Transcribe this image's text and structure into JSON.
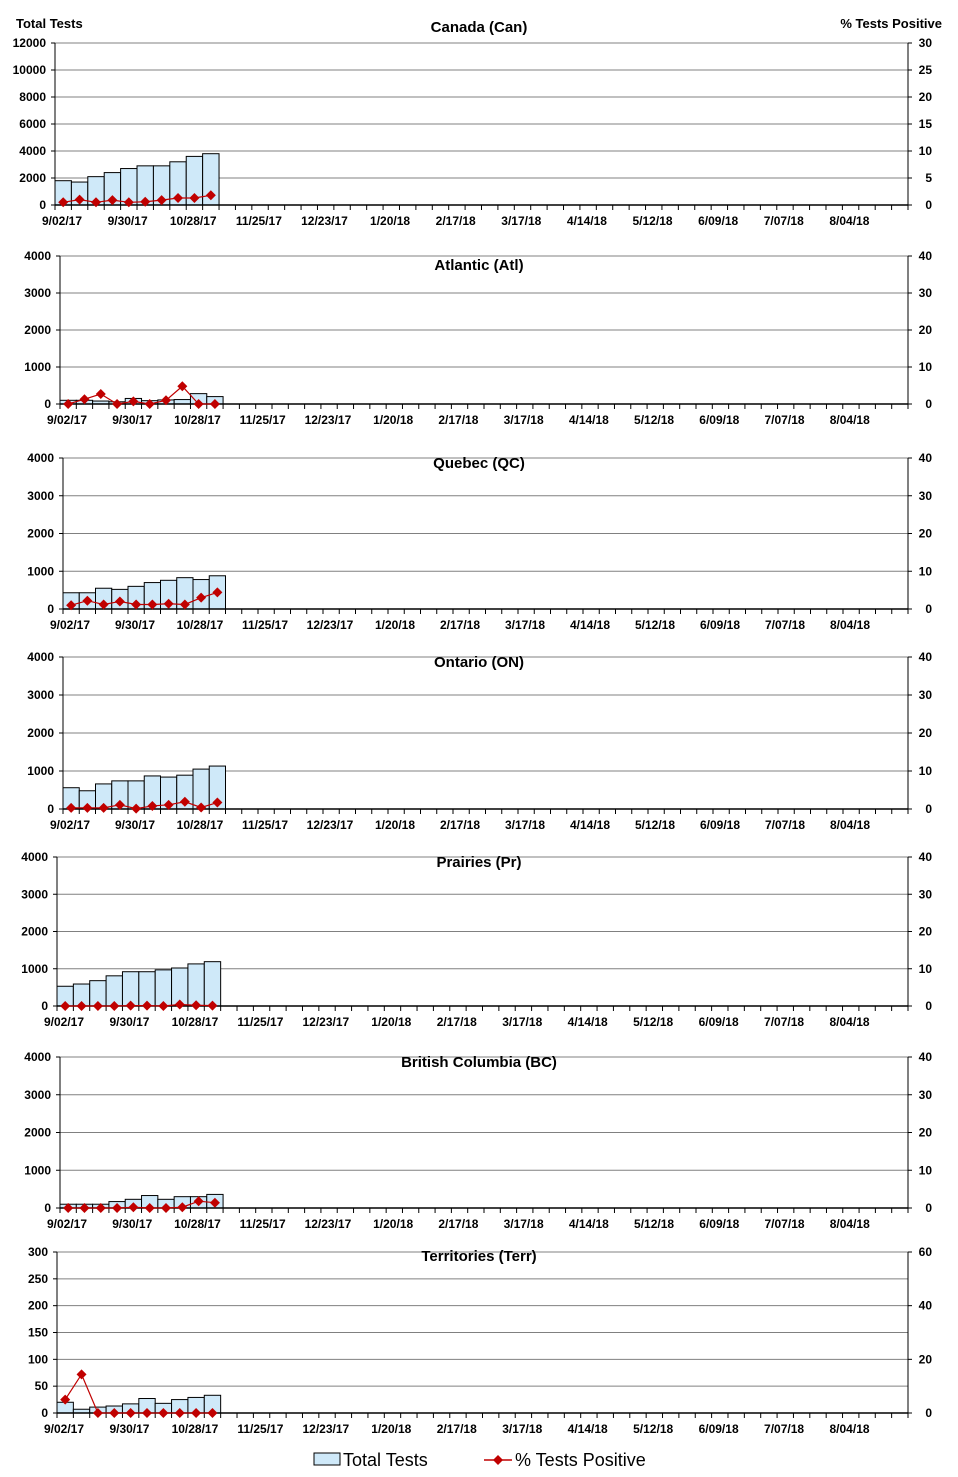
{
  "chart_data": [
    {
      "type": "bar+line",
      "title": "Canada (Can)",
      "ylabel": "Total Tests",
      "y2label": "% Tests Positive",
      "ylim": [
        0,
        12000
      ],
      "yticks": [
        0,
        2000,
        4000,
        6000,
        8000,
        10000,
        12000
      ],
      "y2lim": [
        0,
        30
      ],
      "y2ticks": [
        0,
        5,
        10,
        15,
        20,
        25,
        30
      ],
      "series": [
        {
          "name": "Total Tests",
          "values": [
            1800,
            1700,
            2100,
            2400,
            2700,
            2900,
            2900,
            3200,
            3600,
            3800
          ]
        },
        {
          "name": "% Tests Positive",
          "values": [
            0.5,
            1.0,
            0.5,
            0.9,
            0.5,
            0.6,
            0.9,
            1.3,
            1.3,
            1.8
          ]
        }
      ]
    },
    {
      "type": "bar+line",
      "title": "Atlantic (Atl)",
      "ylim": [
        0,
        4000
      ],
      "yticks": [
        0,
        1000,
        2000,
        3000,
        4000
      ],
      "y2lim": [
        0,
        40
      ],
      "y2ticks": [
        0,
        10,
        20,
        30,
        40
      ],
      "series": [
        {
          "name": "Total Tests",
          "values": [
            100,
            100,
            80,
            60,
            150,
            90,
            110,
            120,
            280,
            200
          ]
        },
        {
          "name": "% Tests Positive",
          "values": [
            0,
            1.3,
            2.7,
            0,
            0.7,
            0,
            1.0,
            4.8,
            0,
            0
          ]
        }
      ]
    },
    {
      "type": "bar+line",
      "title": "Quebec (QC)",
      "ylim": [
        0,
        4000
      ],
      "yticks": [
        0,
        1000,
        2000,
        3000,
        4000
      ],
      "y2lim": [
        0,
        40
      ],
      "y2ticks": [
        0,
        10,
        20,
        30,
        40
      ],
      "series": [
        {
          "name": "Total Tests",
          "values": [
            430,
            430,
            550,
            520,
            600,
            700,
            760,
            830,
            780,
            880
          ]
        },
        {
          "name": "% Tests Positive",
          "values": [
            1.0,
            2.2,
            1.2,
            2.0,
            1.2,
            1.2,
            1.4,
            1.2,
            3.0,
            4.4
          ]
        }
      ]
    },
    {
      "type": "bar+line",
      "title": "Ontario (ON)",
      "ylim": [
        0,
        4000
      ],
      "yticks": [
        0,
        1000,
        2000,
        3000,
        4000
      ],
      "y2lim": [
        0,
        40
      ],
      "y2ticks": [
        0,
        10,
        20,
        30,
        40
      ],
      "series": [
        {
          "name": "Total Tests",
          "values": [
            560,
            480,
            660,
            740,
            740,
            870,
            840,
            890,
            1050,
            1130
          ]
        },
        {
          "name": "% Tests Positive",
          "values": [
            0.3,
            0.3,
            0.3,
            1.1,
            0.1,
            0.8,
            1.1,
            1.9,
            0.4,
            1.7
          ]
        }
      ]
    },
    {
      "type": "bar+line",
      "title": "Prairies (Pr)",
      "ylim": [
        0,
        4000
      ],
      "yticks": [
        0,
        1000,
        2000,
        3000,
        4000
      ],
      "y2lim": [
        0,
        40
      ],
      "y2ticks": [
        0,
        10,
        20,
        30,
        40
      ],
      "series": [
        {
          "name": "Total Tests",
          "values": [
            530,
            590,
            680,
            810,
            920,
            920,
            970,
            1020,
            1130,
            1190
          ]
        },
        {
          "name": "% Tests Positive",
          "values": [
            0,
            0,
            0,
            0,
            0.1,
            0.1,
            0,
            0.4,
            0.2,
            0.1
          ]
        }
      ]
    },
    {
      "type": "bar+line",
      "title": "British Columbia (BC)",
      "ylim": [
        0,
        4000
      ],
      "yticks": [
        0,
        1000,
        2000,
        3000,
        4000
      ],
      "y2lim": [
        0,
        40
      ],
      "y2ticks": [
        0,
        10,
        20,
        30,
        40
      ],
      "series": [
        {
          "name": "Total Tests",
          "values": [
            100,
            100,
            100,
            170,
            230,
            330,
            230,
            300,
            300,
            360
          ]
        },
        {
          "name": "% Tests Positive",
          "values": [
            0,
            0,
            0,
            0,
            0.2,
            0,
            0,
            0.2,
            1.8,
            1.4
          ]
        }
      ]
    },
    {
      "type": "bar+line",
      "title": "Territories (Terr)",
      "ylim": [
        0,
        300
      ],
      "yticks": [
        0,
        50,
        100,
        150,
        200,
        250,
        300
      ],
      "y2lim": [
        0,
        60
      ],
      "y2ticks": [
        0,
        20,
        40,
        60
      ],
      "series": [
        {
          "name": "Total Tests",
          "values": [
            20,
            7,
            11,
            13,
            17,
            27,
            18,
            25,
            29,
            33
          ]
        },
        {
          "name": "% Tests Positive",
          "values": [
            5,
            14.4,
            0,
            0,
            0,
            0,
            0,
            0,
            0,
            0
          ]
        }
      ]
    }
  ],
  "x_tick_labels": [
    "9/02/17",
    "9/30/17",
    "10/28/17",
    "11/25/17",
    "12/23/17",
    "1/20/18",
    "2/17/18",
    "3/17/18",
    "4/14/18",
    "5/12/18",
    "6/09/18",
    "7/07/18",
    "8/04/18"
  ],
  "weeks": 52,
  "legend": {
    "bars": "Total Tests",
    "line": "% Tests Positive"
  },
  "colors": {
    "bar": "#cfe9f9",
    "line": "#c00000",
    "grid": "#808080"
  }
}
